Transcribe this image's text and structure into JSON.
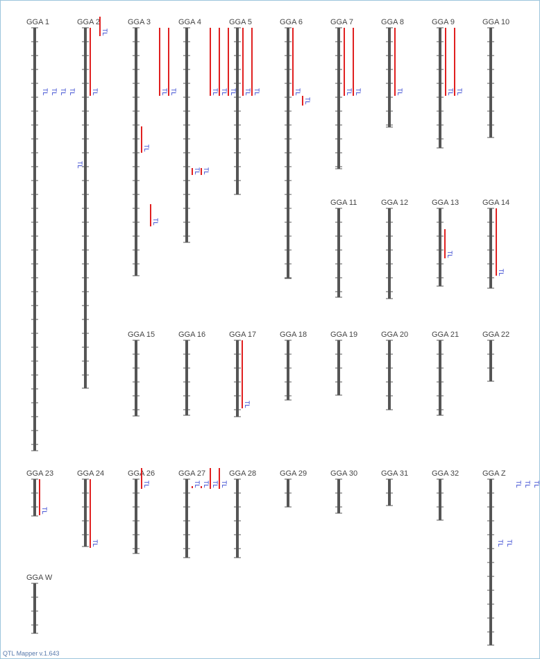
{
  "chromosomes": [
    {
      "label": "GGA 1"
    },
    {
      "label": "GGA 2"
    },
    {
      "label": "GGA 3"
    },
    {
      "label": "GGA 4"
    },
    {
      "label": "GGA 5"
    },
    {
      "label": "GGA 6"
    },
    {
      "label": "GGA 7"
    },
    {
      "label": "GGA 8"
    },
    {
      "label": "GGA 9"
    },
    {
      "label": "GGA 10"
    },
    {
      "label": "GGA 11"
    },
    {
      "label": "GGA 12"
    },
    {
      "label": "GGA 13"
    },
    {
      "label": "GGA 14"
    },
    {
      "label": "GGA 15"
    },
    {
      "label": "GGA 16"
    },
    {
      "label": "GGA 17"
    },
    {
      "label": "GGA 18"
    },
    {
      "label": "GGA 19"
    },
    {
      "label": "GGA 20"
    },
    {
      "label": "GGA 21"
    },
    {
      "label": "GGA 22"
    },
    {
      "label": "GGA 23"
    },
    {
      "label": "GGA 24"
    },
    {
      "label": "GGA 26"
    },
    {
      "label": "GGA 27"
    },
    {
      "label": "GGA 28"
    },
    {
      "label": "GGA 29"
    },
    {
      "label": "GGA 30"
    },
    {
      "label": "GGA 31"
    },
    {
      "label": "GGA 32"
    },
    {
      "label": "GGA Z"
    },
    {
      "label": "GGA W"
    }
  ],
  "qtls": [
    {
      "label": "TL"
    },
    {
      "label": "TL"
    },
    {
      "label": "TL"
    },
    {
      "label": "TL"
    },
    {
      "label": "TL"
    },
    {
      "label": "TL"
    },
    {
      "label": "TL"
    },
    {
      "label": "TL"
    },
    {
      "label": "TL"
    },
    {
      "label": "TL"
    },
    {
      "label": "TL"
    },
    {
      "label": "TL"
    },
    {
      "label": "TL"
    },
    {
      "label": "TL"
    },
    {
      "label": "TL"
    },
    {
      "label": "TL"
    },
    {
      "label": "TL"
    },
    {
      "label": "TL"
    },
    {
      "label": "TL"
    },
    {
      "label": "TL"
    },
    {
      "label": "TL"
    },
    {
      "label": "TL"
    },
    {
      "label": "TL"
    },
    {
      "label": "TL"
    },
    {
      "label": "TL"
    },
    {
      "label": "TL"
    },
    {
      "label": "TL"
    },
    {
      "label": "TL"
    },
    {
      "label": "TL"
    },
    {
      "label": "TL"
    },
    {
      "label": "TL"
    },
    {
      "label": "TL"
    },
    {
      "label": "TL"
    },
    {
      "label": "TL"
    },
    {
      "label": "TL"
    },
    {
      "label": "TL"
    },
    {
      "label": "TL"
    },
    {
      "label": "TL"
    },
    {
      "label": "TL"
    },
    {
      "label": "TL"
    }
  ],
  "footer": "QTL Mapper v.1.643"
}
